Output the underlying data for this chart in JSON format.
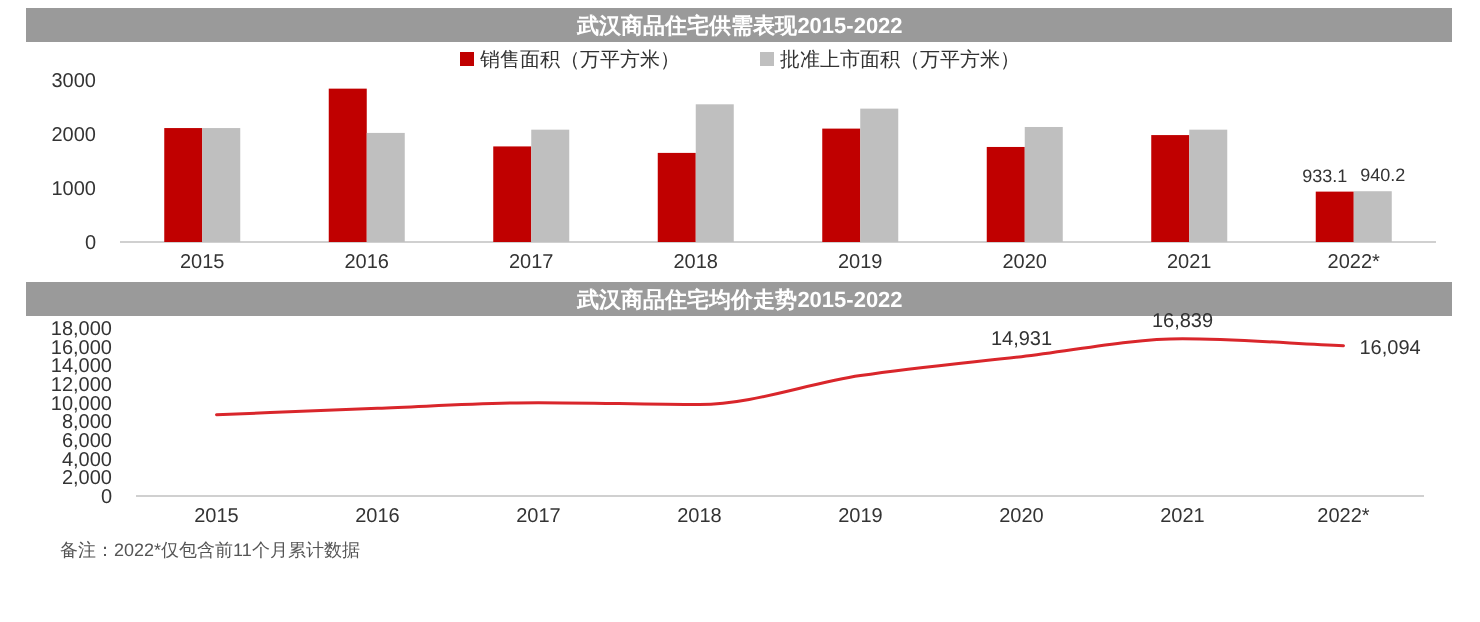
{
  "chart_data": [
    {
      "type": "bar",
      "title": "武汉商品住宅供需表现2015-2022",
      "categories": [
        "2015",
        "2016",
        "2017",
        "2018",
        "2019",
        "2020",
        "2021",
        "2022*"
      ],
      "series": [
        {
          "name": "销售面积（万平方米）",
          "color": "#c00000",
          "values": [
            2110,
            2840,
            1770,
            1650,
            2100,
            1760,
            1980,
            933.1
          ],
          "value_labels": [
            null,
            null,
            null,
            null,
            null,
            null,
            null,
            "933.1"
          ]
        },
        {
          "name": "批准上市面积（万平方米）",
          "color": "#bfbfbf",
          "values": [
            2110,
            2020,
            2080,
            2550,
            2470,
            2130,
            2080,
            940.2
          ],
          "value_labels": [
            null,
            null,
            null,
            null,
            null,
            null,
            null,
            "940.2"
          ]
        }
      ],
      "ylim": [
        0,
        3000
      ],
      "yticks": [
        0,
        1000,
        2000,
        3000
      ],
      "legend": "top",
      "grid": false
    },
    {
      "type": "line",
      "title": "武汉商品住宅均价走势2015-2022",
      "categories": [
        "2015",
        "2016",
        "2017",
        "2018",
        "2019",
        "2020",
        "2021",
        "2022*"
      ],
      "series": [
        {
          "color": "#d9262b",
          "values": [
            8700,
            9400,
            10000,
            9800,
            12900,
            14931,
            16839,
            16094
          ],
          "value_labels": [
            null,
            null,
            null,
            null,
            null,
            "14,931",
            "16,839",
            "16,094"
          ]
        }
      ],
      "ylim": [
        0,
        18000
      ],
      "yticks": [
        0,
        {
          "value": 2000,
          "label": "2,000"
        },
        {
          "value": 4000,
          "label": "4,000"
        },
        {
          "value": 6000,
          "label": "6,000"
        },
        {
          "value": 8000,
          "label": "8,000"
        },
        {
          "value": 10000,
          "label": "10,000"
        },
        {
          "value": 12000,
          "label": "12,000"
        },
        {
          "value": 14000,
          "label": "14,000"
        },
        {
          "value": 16000,
          "label": "16,000"
        },
        {
          "value": 18000,
          "label": "18,000"
        }
      ],
      "grid": false,
      "annotations": [
        "备注：2022*仅包含前11个月累计数据"
      ]
    }
  ]
}
